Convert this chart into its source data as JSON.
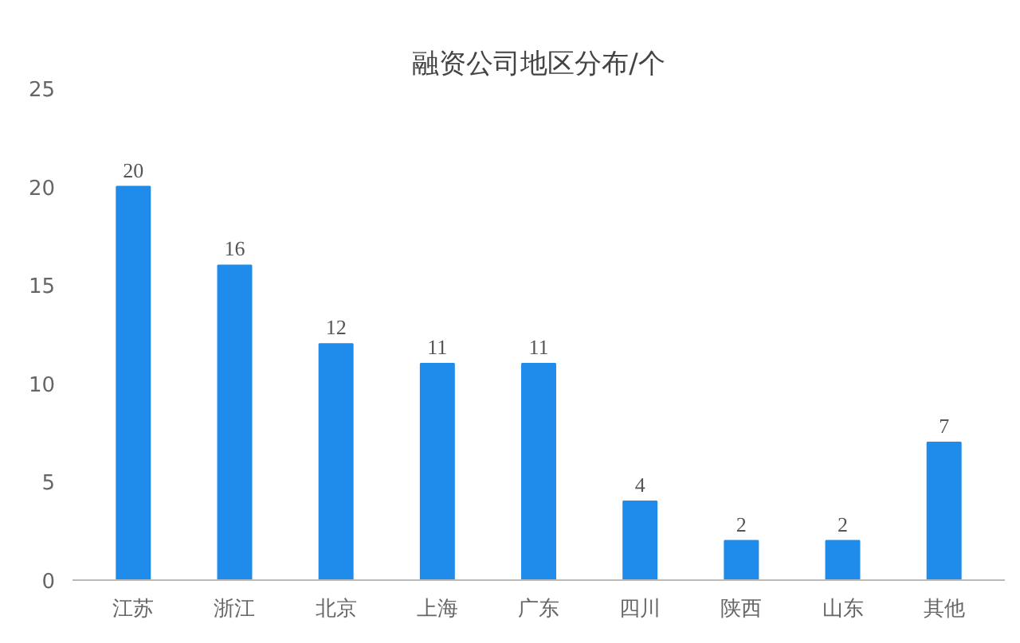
{
  "chart_data": {
    "type": "bar",
    "title": "融资公司地区分布/个",
    "categories": [
      "江苏",
      "浙江",
      "北京",
      "上海",
      "广东",
      "四川",
      "陕西",
      "山东",
      "其他"
    ],
    "values": [
      20,
      16,
      12,
      11,
      11,
      4,
      2,
      2,
      7
    ],
    "color": "#1f8ceb",
    "ylim": [
      0,
      25
    ],
    "yticks": [
      0,
      5,
      10,
      15,
      20,
      25
    ],
    "grid": false,
    "data_labels": true
  }
}
